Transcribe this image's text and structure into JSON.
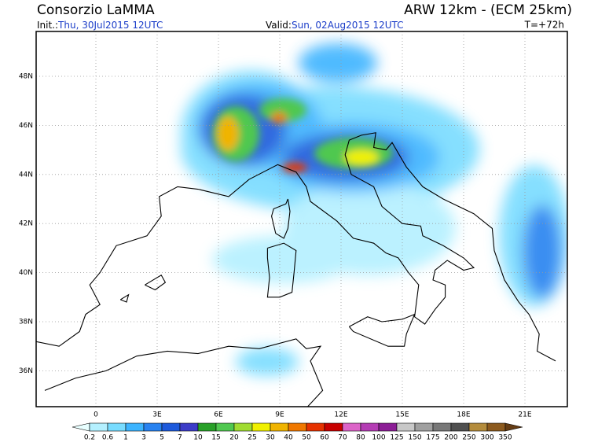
{
  "header": {
    "title": "Consorzio LaMMA",
    "model": "ARW 12km - (ECM 25km)",
    "init_label": "Init.:",
    "init": "Thu, 30Jul2015 12UTC",
    "valid_label": "Valid:",
    "valid": "Sun, 02Aug2015 12UTC",
    "lead": "T=+72h"
  },
  "map": {
    "lat_labels": [
      "48N",
      "46N",
      "44N",
      "42N",
      "40N",
      "38N",
      "36N"
    ],
    "lon_labels": [
      "0",
      "3E",
      "6E",
      "9E",
      "12E",
      "15E",
      "18E",
      "21E"
    ]
  },
  "colorbar": {
    "levels": [
      0.2,
      0.6,
      1,
      3,
      5,
      7,
      10,
      15,
      20,
      25,
      30,
      40,
      50,
      60,
      70,
      80,
      100,
      125,
      150,
      175,
      200,
      250,
      300,
      350
    ],
    "colors": [
      "#e8ffff",
      "#b4f0ff",
      "#78dcff",
      "#3cb4ff",
      "#2882f0",
      "#1e5adc",
      "#3c3cc8",
      "#28a028",
      "#50c850",
      "#a0dc32",
      "#f0f000",
      "#f0b400",
      "#f07800",
      "#e63200",
      "#c80000",
      "#dc64c8",
      "#b43cb4",
      "#8c1e96",
      "#c8c8c8",
      "#a0a0a0",
      "#787878",
      "#505050",
      "#b48c3c",
      "#8c5a1e",
      "#643c14"
    ]
  }
}
